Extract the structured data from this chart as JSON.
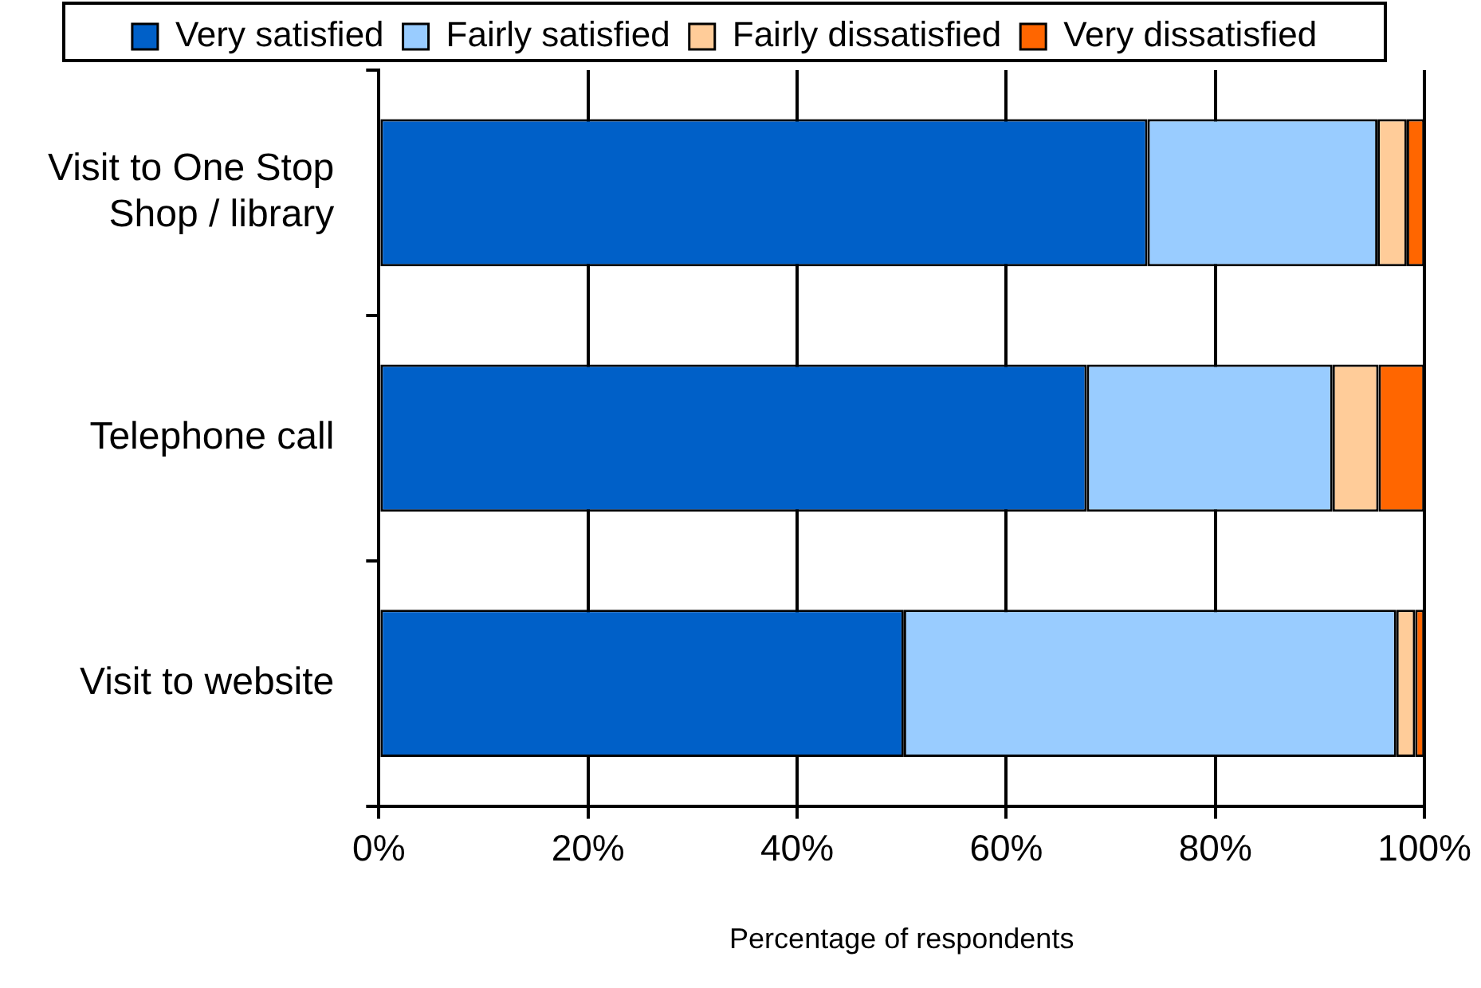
{
  "chart_data": {
    "type": "bar",
    "orientation": "horizontal",
    "stacked": true,
    "categories": [
      "Visit to One Stop Shop / library",
      "Telephone call",
      "Visit to website"
    ],
    "series": [
      {
        "name": "Very satisfied",
        "color": "#0060c8",
        "values": [
          73.5,
          67.7,
          50.2
        ]
      },
      {
        "name": "Fairly satisfied",
        "color": "#99ccff",
        "values": [
          22,
          23.5,
          47.1
        ]
      },
      {
        "name": "Fairly dissatisfied",
        "color": "#ffcc99",
        "values": [
          2.8,
          4.4,
          1.8
        ]
      },
      {
        "name": "Very dissatisfied",
        "color": "#ff6600",
        "values": [
          1.7,
          4.4,
          0.9
        ]
      }
    ],
    "xlim": [
      0,
      100
    ],
    "xticks": [
      {
        "value": 0,
        "label": "0%"
      },
      {
        "value": 20,
        "label": "20%"
      },
      {
        "value": 40,
        "label": "40%"
      },
      {
        "value": 60,
        "label": "60%"
      },
      {
        "value": 80,
        "label": "80%"
      },
      {
        "value": 100,
        "label": "100%"
      }
    ],
    "xlabel": "Percentage of respondents",
    "grid": "x",
    "legend": "top"
  }
}
